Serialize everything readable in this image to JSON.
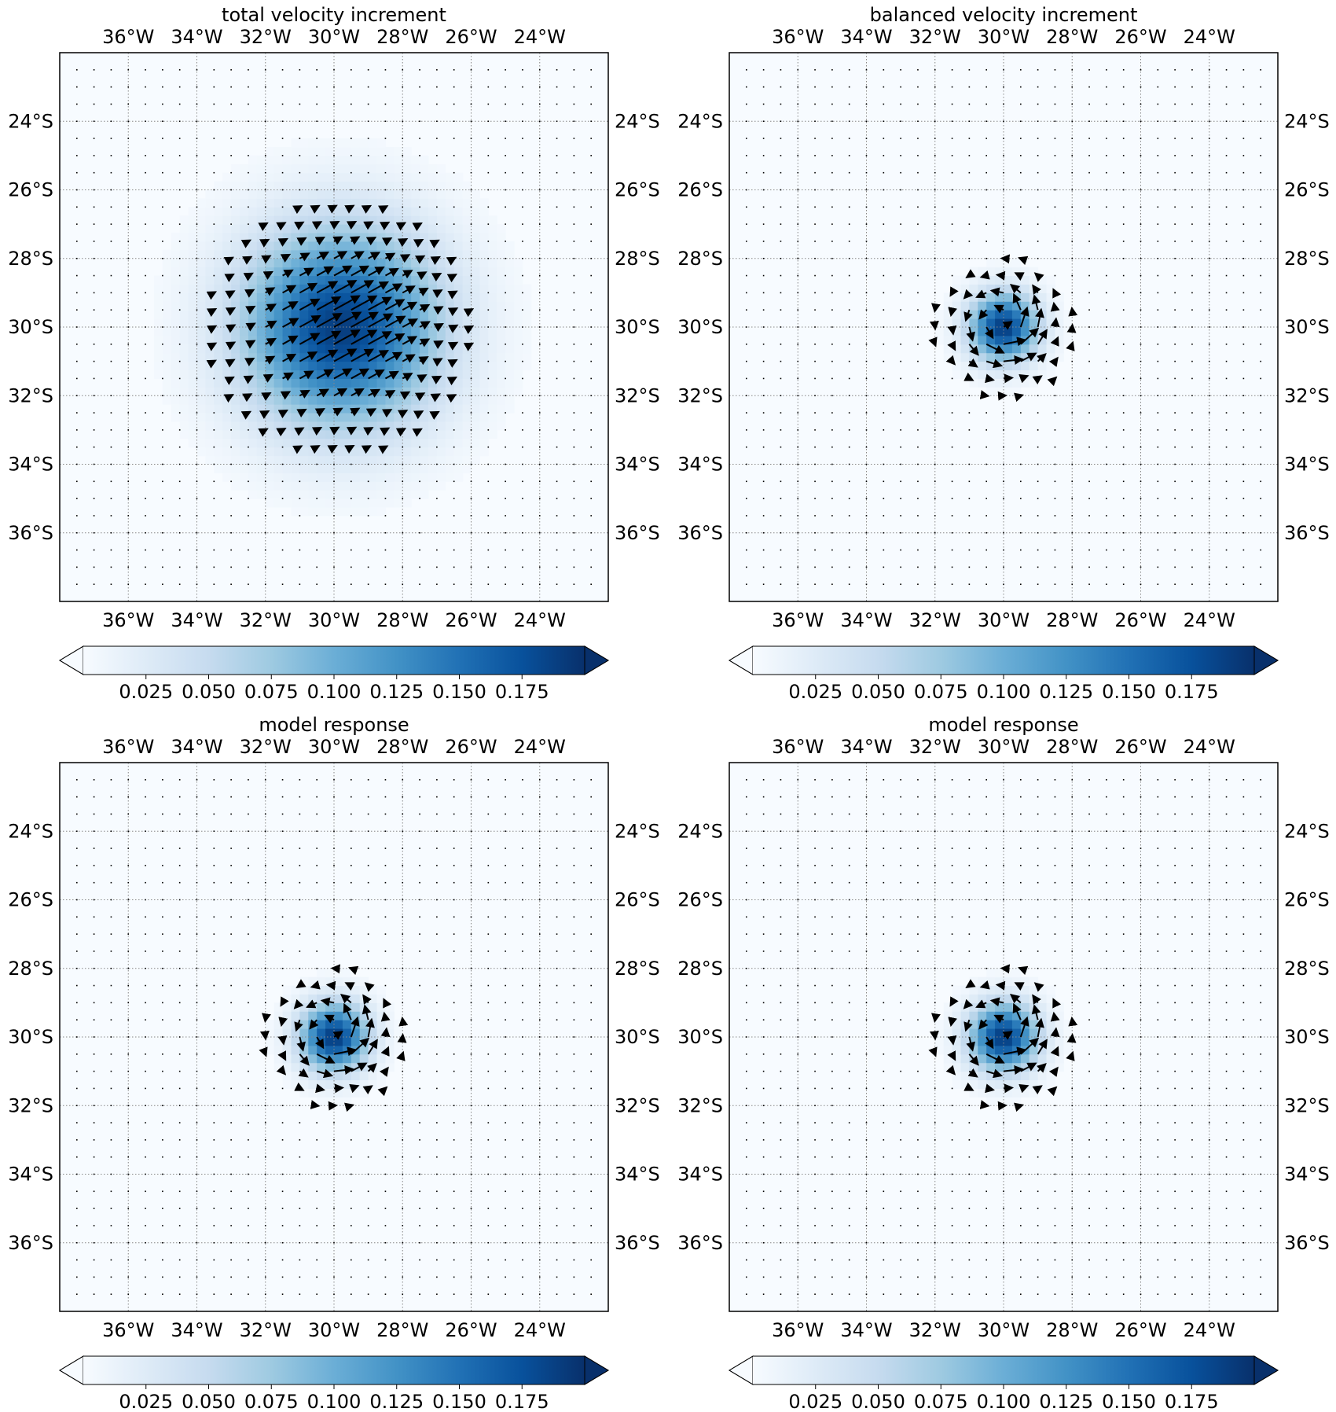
{
  "figure": {
    "colorbar": {
      "ticks": [
        0.025,
        0.05,
        0.075,
        0.1,
        0.125,
        0.15,
        0.175
      ],
      "tick_labels": [
        "0.025",
        "0.050",
        "0.075",
        "0.100",
        "0.125",
        "0.150",
        "0.175"
      ],
      "range": [
        0,
        0.2
      ],
      "extend": "both",
      "colormap": "Blues",
      "colors": [
        "#f7fbff",
        "#deebf7",
        "#c6dbef",
        "#9ecae1",
        "#6baed6",
        "#4292c6",
        "#2171b5",
        "#08519c",
        "#08306b"
      ]
    },
    "lon_tick_labels": [
      "36°W",
      "34°W",
      "32°W",
      "30°W",
      "28°W",
      "26°W",
      "24°W"
    ],
    "lat_tick_labels": [
      "24°S",
      "26°S",
      "28°S",
      "30°S",
      "32°S",
      "34°S",
      "36°S"
    ],
    "grid": "dotted"
  },
  "chart_data": [
    {
      "type": "heatmap",
      "title": "total velocity increment",
      "xlabel": "",
      "ylabel": "",
      "x_ticks": [
        -36,
        -34,
        -32,
        -30,
        -28,
        -26,
        -24
      ],
      "y_ticks": [
        -24,
        -26,
        -28,
        -30,
        -32,
        -34,
        -36
      ],
      "xlim": [
        -38,
        -22
      ],
      "ylim": [
        -38,
        -22
      ],
      "field": {
        "center_lon": -29.8,
        "center_lat": -30.0,
        "peak": 0.19,
        "spread_deg": 2.0
      },
      "vectors": {
        "pattern": "broad flow toward northeast, strongest near 29°W 29.5°S",
        "max_speed": 0.19
      }
    },
    {
      "type": "heatmap",
      "title": "balanced velocity increment",
      "xlabel": "",
      "ylabel": "",
      "x_ticks": [
        -36,
        -34,
        -32,
        -30,
        -28,
        -26,
        -24
      ],
      "y_ticks": [
        -24,
        -26,
        -28,
        -30,
        -32,
        -34,
        -36
      ],
      "xlim": [
        -38,
        -22
      ],
      "ylim": [
        -38,
        -22
      ],
      "field": {
        "center_lon": -30.0,
        "center_lat": -30.0,
        "peak": 0.19,
        "spread_deg": 0.7
      },
      "vectors": {
        "pattern": "small cyclonic eddy around 30°W 30°S",
        "max_speed": 0.19
      }
    },
    {
      "type": "heatmap",
      "title": "model response",
      "xlabel": "",
      "ylabel": "",
      "x_ticks": [
        -36,
        -34,
        -32,
        -30,
        -28,
        -26,
        -24
      ],
      "y_ticks": [
        -24,
        -26,
        -28,
        -30,
        -32,
        -34,
        -36
      ],
      "xlim": [
        -38,
        -22
      ],
      "ylim": [
        -38,
        -22
      ],
      "field": {
        "center_lon": -30.0,
        "center_lat": -30.0,
        "peak": 0.19,
        "spread_deg": 0.7
      },
      "vectors": {
        "pattern": "small cyclonic eddy around 30°W 30°S",
        "max_speed": 0.19
      }
    },
    {
      "type": "heatmap",
      "title": "model response",
      "xlabel": "",
      "ylabel": "",
      "x_ticks": [
        -36,
        -34,
        -32,
        -30,
        -28,
        -26,
        -24
      ],
      "y_ticks": [
        -24,
        -26,
        -28,
        -30,
        -32,
        -34,
        -36
      ],
      "xlim": [
        -38,
        -22
      ],
      "ylim": [
        -38,
        -22
      ],
      "field": {
        "center_lon": -30.0,
        "center_lat": -30.0,
        "peak": 0.19,
        "spread_deg": 0.7
      },
      "vectors": {
        "pattern": "small cyclonic eddy around 30°W 30°S",
        "max_speed": 0.19
      }
    }
  ]
}
